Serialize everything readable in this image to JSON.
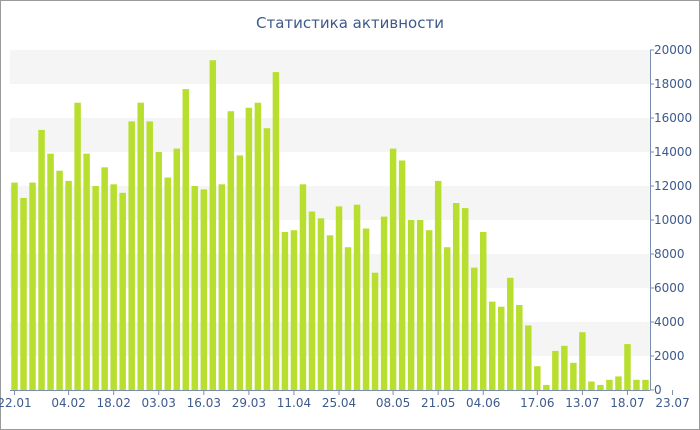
{
  "chart_data": {
    "type": "bar",
    "title": "Статистика активности",
    "xlabel": "",
    "ylabel": "",
    "ylim": [
      0,
      20000
    ],
    "yticks": [
      0,
      2000,
      4000,
      6000,
      8000,
      10000,
      12000,
      14000,
      16000,
      18000,
      20000
    ],
    "grid": "alternating horizontal bands",
    "bar_color": "#b8df2f",
    "band_color": "#f5f5f5",
    "axis_color": "#7a8db0",
    "text_color": "#3d5a8c",
    "x_tick_labels": [
      {
        "label": "22.01",
        "index": 0
      },
      {
        "label": "04.02",
        "index": 6
      },
      {
        "label": "18.02",
        "index": 11
      },
      {
        "label": "03.03",
        "index": 16
      },
      {
        "label": "16.03",
        "index": 21
      },
      {
        "label": "29.03",
        "index": 26
      },
      {
        "label": "11.04",
        "index": 31
      },
      {
        "label": "25.04",
        "index": 36
      },
      {
        "label": "08.05",
        "index": 42
      },
      {
        "label": "21.05",
        "index": 47
      },
      {
        "label": "04.06",
        "index": 52
      },
      {
        "label": "17.06",
        "index": 58
      },
      {
        "label": "13.07",
        "index": 63
      },
      {
        "label": "18.07",
        "index": 68
      },
      {
        "label": "23.07",
        "index": 73
      }
    ],
    "values": [
      12200,
      11300,
      12200,
      15300,
      13900,
      12900,
      12300,
      16900,
      13900,
      12000,
      13100,
      12100,
      11600,
      15800,
      16900,
      15800,
      14000,
      12500,
      14200,
      17700,
      12000,
      11800,
      19400,
      12100,
      16400,
      13800,
      16600,
      16900,
      15400,
      18700,
      9300,
      9400,
      12100,
      10500,
      10100,
      9100,
      10800,
      8400,
      10900,
      9500,
      6900,
      10200,
      14200,
      13500,
      10000,
      10000,
      9400,
      12300,
      8400,
      11000,
      10700,
      7200,
      9300,
      5200,
      4900,
      6600,
      5000,
      3800,
      1400,
      300,
      2300,
      2600,
      1600,
      3400,
      500,
      300,
      600,
      800,
      2700,
      600,
      600
    ]
  }
}
